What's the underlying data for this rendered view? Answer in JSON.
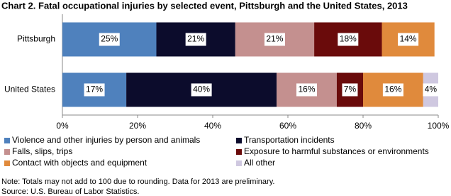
{
  "chart_data": {
    "type": "stacked-bar-horizontal",
    "title": "Chart 2. Fatal occupational injuries by selected event, Pittsburgh and the United States, 2013",
    "categories": [
      "Pittsburgh",
      "United States"
    ],
    "series": [
      {
        "name": "Violence and other injuries by person and animals",
        "color": "#4f81bd",
        "values": [
          25,
          17
        ],
        "value_labels": [
          "25%",
          "17%"
        ]
      },
      {
        "name": "Transportation incidents",
        "color": "#0c0c2c",
        "values": [
          21,
          40
        ],
        "value_labels": [
          "21%",
          "40%"
        ]
      },
      {
        "name": "Falls, slips, trips",
        "color": "#c4908f",
        "values": [
          21,
          16
        ],
        "value_labels": [
          "21%",
          "16%"
        ]
      },
      {
        "name": "Exposure to harmful substances or environments",
        "color": "#6a0b0b",
        "values": [
          18,
          7
        ],
        "value_labels": [
          "18%",
          "7%"
        ]
      },
      {
        "name": "Contact with objects and equipment",
        "color": "#e08a3c",
        "values": [
          14,
          16
        ],
        "value_labels": [
          "14%",
          "16%"
        ]
      },
      {
        "name": "All other",
        "color": "#cfc8e0",
        "values": [
          null,
          4
        ],
        "value_labels": [
          null,
          "4%"
        ]
      }
    ],
    "xlim": [
      0,
      100
    ],
    "xticks": [
      {
        "value": 0,
        "label": "0%"
      },
      {
        "value": 20,
        "label": "20%"
      },
      {
        "value": 40,
        "label": "40%"
      },
      {
        "value": 60,
        "label": "60%"
      },
      {
        "value": 80,
        "label": "80%"
      },
      {
        "value": 100,
        "label": "100%"
      }
    ],
    "note": "Note: Totals may not add to 100 due to rounding.  Data for 2013 are preliminary.",
    "source": "Source: U.S. Bureau of Labor Statistics."
  }
}
